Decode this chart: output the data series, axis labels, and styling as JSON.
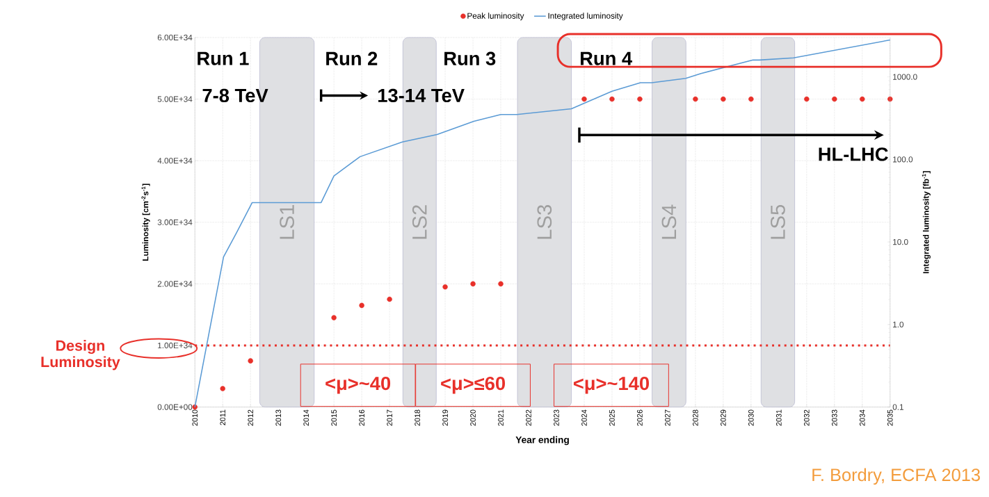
{
  "chart_data": {
    "type": "scatter",
    "xlabel": "Year ending",
    "ylabel": "Luminosity [cm$^{-2}$s$^{-1}$]",
    "y2label": "Integrated luminosity [fb$^{-1}$]",
    "xlim": [
      2010,
      2035
    ],
    "xticks": [
      2010,
      2011,
      2012,
      2013,
      2014,
      2015,
      2016,
      2017,
      2018,
      2019,
      2020,
      2021,
      2022,
      2023,
      2024,
      2025,
      2026,
      2027,
      2028,
      2029,
      2030,
      2031,
      2032,
      2033,
      2034,
      2035
    ],
    "ylim": [
      0,
      6e+34
    ],
    "yticks": [
      {
        "value": 0,
        "label": "0.00E+00"
      },
      {
        "value": 1e+34,
        "label": "1.00E+34"
      },
      {
        "value": 2e+34,
        "label": "2.00E+34"
      },
      {
        "value": 3e+34,
        "label": "3.00E+34"
      },
      {
        "value": 4e+34,
        "label": "4.00E+34"
      },
      {
        "value": 5e+34,
        "label": "5.00E+34"
      },
      {
        "value": 6e+34,
        "label": "6.00E+34"
      }
    ],
    "y2lim": [
      0.1,
      3000
    ],
    "y2ticks": [
      {
        "value": 0.1,
        "label": "0.1"
      },
      {
        "value": 1,
        "label": "1.0"
      },
      {
        "value": 10,
        "label": "10.0"
      },
      {
        "value": 100,
        "label": "100.0"
      },
      {
        "value": 1000,
        "label": "1000.0"
      }
    ],
    "log": "y2",
    "grid": true,
    "legend": "top",
    "series": [
      {
        "name": "Peak luminosity",
        "type": "scatter",
        "marker": "circle",
        "color": "#e8302a",
        "x": [
          2010,
          2011,
          2012,
          2015,
          2016,
          2017,
          2019,
          2020,
          2021,
          2024,
          2025,
          2026,
          2028,
          2029,
          2030,
          2032,
          2033,
          2034,
          2035
        ],
        "values": [
          0,
          3e+33,
          7.5e+33,
          1.45e+34,
          1.65e+34,
          1.75e+34,
          1.95e+34,
          2e+34,
          2e+34,
          5e+34,
          5e+34,
          5e+34,
          5e+34,
          5e+34,
          5e+34,
          5e+34,
          5e+34,
          5e+34,
          5e+34
        ]
      },
      {
        "name": "Integrated luminosity",
        "type": "line",
        "marker": "none",
        "axis": "y2",
        "color": "#5b9bd5",
        "x": [
          2010,
          2011.03,
          2011.5,
          2012.06,
          2014.54,
          2015.0,
          2015.94,
          2017.46,
          2018.71,
          2020.03,
          2021.0,
          2021.58,
          2023.54,
          2025.0,
          2026.02,
          2026.43,
          2027.65,
          2028.2,
          2030.07,
          2030.3,
          2031.53,
          2035.0
        ],
        "values": [
          0.1,
          6.6,
          13,
          30,
          30,
          63,
          108,
          163,
          200,
          290,
          350,
          350,
          410,
          670,
          850,
          850,
          960,
          1100,
          1600,
          1600,
          1700,
          2800
        ]
      }
    ],
    "ref_lines": [
      {
        "axis": "y",
        "value": 1e+34,
        "label": "Design Luminosity",
        "color": "#e8302a",
        "line_style": "dotted"
      }
    ],
    "bands": [
      {
        "axis": "x",
        "from": 2012.33,
        "to": 2014.29,
        "label": "LS1",
        "color": "#dfe0e3"
      },
      {
        "axis": "x",
        "from": 2017.48,
        "to": 2018.68,
        "label": "LS2",
        "color": "#dfe0e3"
      },
      {
        "axis": "x",
        "from": 2021.6,
        "to": 2023.54,
        "label": "LS3",
        "color": "#dfe0e3"
      },
      {
        "axis": "x",
        "from": 2026.44,
        "to": 2027.66,
        "label": "LS4",
        "color": "#dfe0e3"
      },
      {
        "axis": "x",
        "from": 2030.36,
        "to": 2031.57,
        "label": "LS5",
        "color": "#dfe0e3"
      }
    ],
    "annotations": [
      "Run 1",
      "7-8 TeV",
      "Run 2",
      "13-14 TeV",
      "Run 3",
      "Run 4",
      "HL-LHC",
      "<μ>~40",
      "<μ>≤60",
      "<μ>~140",
      "F. Bordry, ECFA 2013"
    ]
  }
}
